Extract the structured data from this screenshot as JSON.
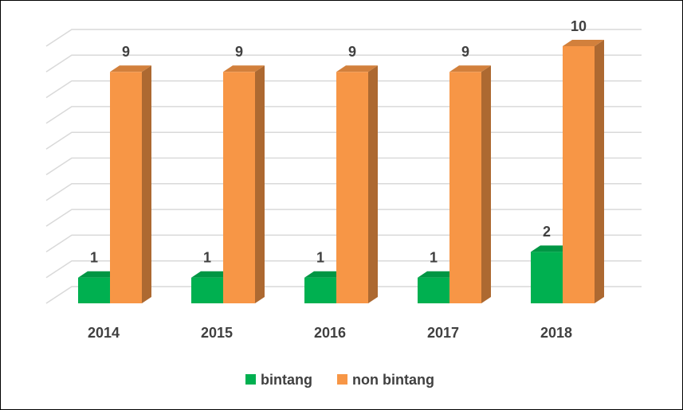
{
  "chart_data": {
    "type": "bar3d",
    "categories": [
      "2014",
      "2015",
      "2016",
      "2017",
      "2018"
    ],
    "series": [
      {
        "name": "bintang",
        "color": "#00b050",
        "values": [
          1,
          1,
          1,
          1,
          2
        ]
      },
      {
        "name": "non bintang",
        "color": "#f79646",
        "values": [
          9,
          9,
          9,
          9,
          10
        ]
      }
    ],
    "ylim": [
      0,
      10
    ],
    "yticks": [
      0,
      1,
      2,
      3,
      4,
      5,
      6,
      7,
      8,
      9,
      10
    ],
    "grid": true,
    "legend": "bottom"
  }
}
